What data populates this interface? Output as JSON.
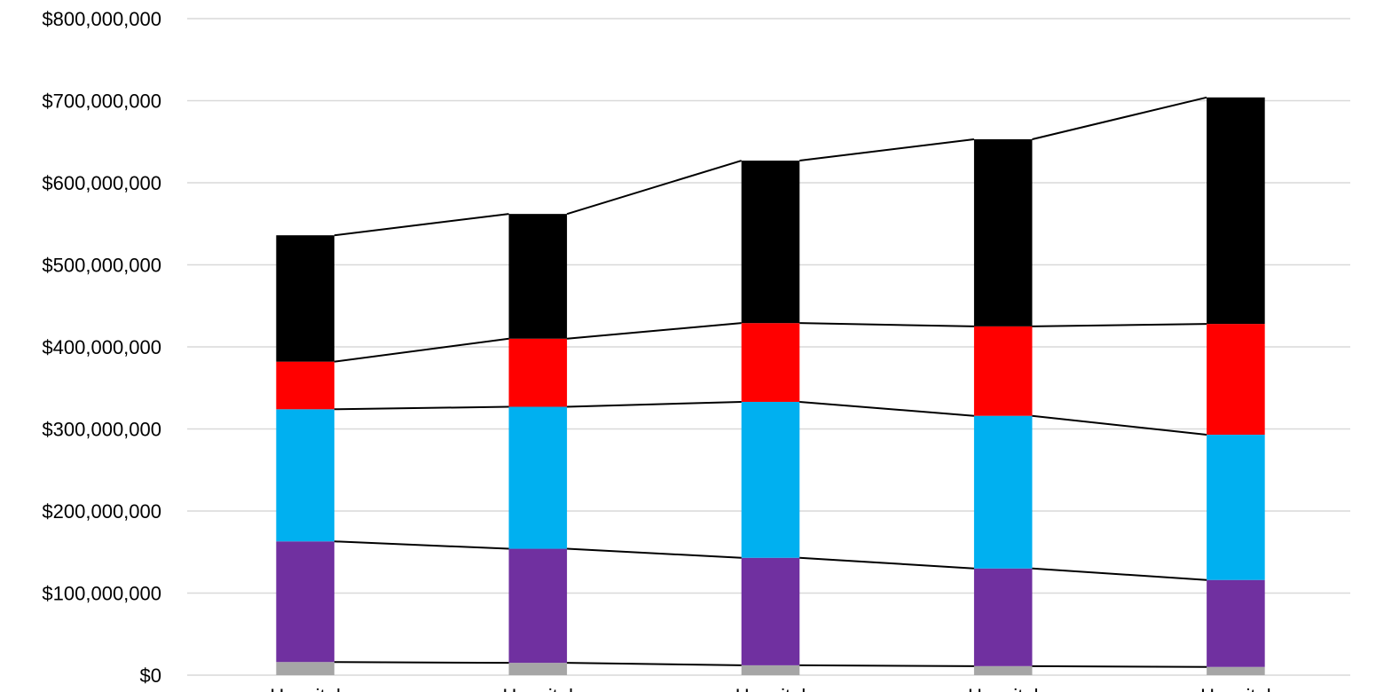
{
  "chart_data": {
    "type": "bar",
    "stacked": true,
    "series_lines": true,
    "categories": [
      "Hospital",
      "Hospital",
      "Hospital",
      "Hospital",
      "Hospital"
    ],
    "series": [
      {
        "color": "#a6a6a6",
        "values": [
          16000000,
          15000000,
          12000000,
          11000000,
          10000000
        ]
      },
      {
        "color": "#7030a0",
        "values": [
          147000000,
          139000000,
          131000000,
          119000000,
          106000000
        ]
      },
      {
        "color": "#00b0f0",
        "values": [
          161000000,
          173000000,
          190000000,
          186000000,
          177000000
        ]
      },
      {
        "color": "#ff0000",
        "values": [
          58000000,
          83000000,
          96000000,
          109000000,
          135000000
        ]
      },
      {
        "color": "#000000",
        "values": [
          154000000,
          152000000,
          198000000,
          228000000,
          276000000
        ]
      }
    ],
    "ylim": [
      0,
      800000000
    ],
    "yticks": [
      "$0",
      "$100,000,000",
      "$200,000,000",
      "$300,000,000",
      "$400,000,000",
      "$500,000,000",
      "$600,000,000",
      "$700,000,000",
      "$800,000,000"
    ],
    "grid": true,
    "title": "",
    "xlabel": "",
    "ylabel": ""
  }
}
